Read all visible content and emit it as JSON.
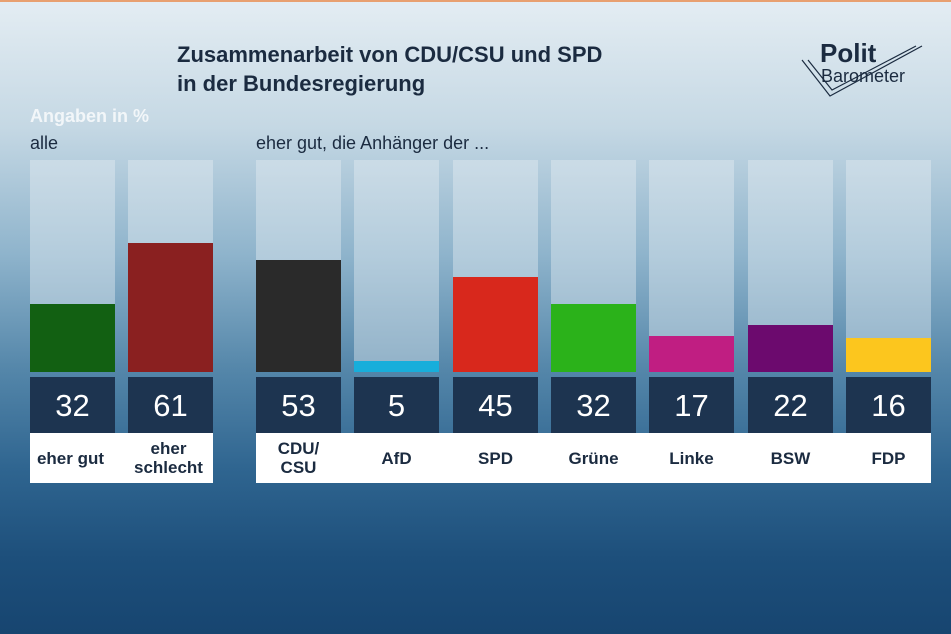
{
  "title_line1": "Zusammenarbeit von CDU/CSU und SPD",
  "title_line2": "in der Bundesregierung",
  "unit_label": "Angaben in %",
  "logo": {
    "line1": "Polit",
    "line2": "Barometer",
    "icon": "checkmark-icon"
  },
  "chart_data": [
    {
      "type": "bar",
      "subtitle": "alle",
      "categories": [
        "eher gut",
        "eher schlecht"
      ],
      "values": [
        32,
        61
      ],
      "colors": [
        "#126012",
        "#8a2020"
      ],
      "value_labels": [
        "32",
        "61"
      ],
      "ylim": [
        0,
        100
      ]
    },
    {
      "type": "bar",
      "subtitle": "eher gut, die Anhänger der ...",
      "categories": [
        "CDU/\nCSU",
        "AfD",
        "SPD",
        "Grüne",
        "Linke",
        "BSW",
        "FDP"
      ],
      "values": [
        53,
        5,
        45,
        32,
        17,
        22,
        16
      ],
      "colors": [
        "#2a2a2a",
        "#17aedb",
        "#d8281c",
        "#2bb21a",
        "#c01e82",
        "#6c0a6e",
        "#fcc61e"
      ],
      "value_labels": [
        "53",
        "5",
        "45",
        "32",
        "17",
        "22",
        "16"
      ],
      "ylim": [
        0,
        100
      ]
    }
  ]
}
